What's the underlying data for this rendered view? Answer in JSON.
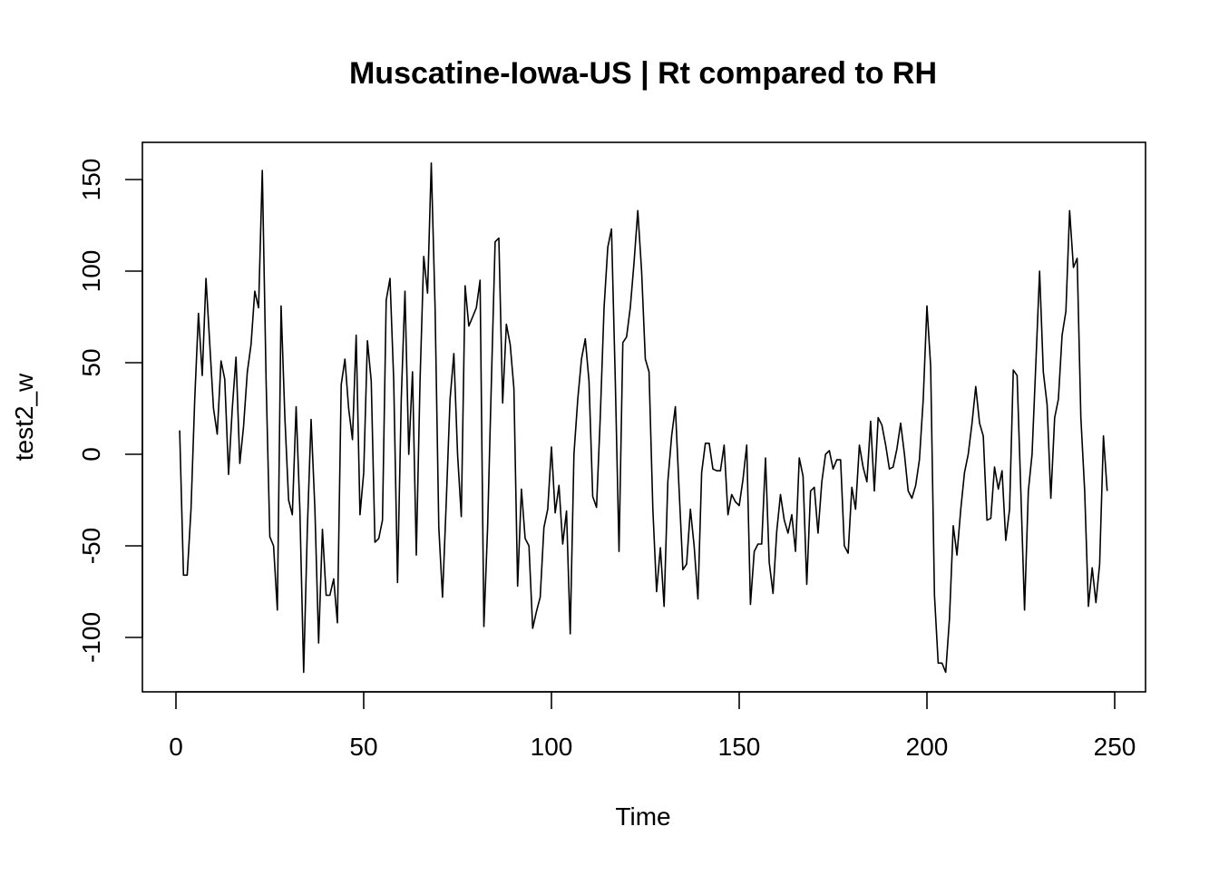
{
  "chart_data": {
    "type": "line",
    "title": "Muscatine-Iowa-US | Rt compared to RH",
    "xlabel": "Time",
    "ylabel": "test2_w",
    "xlim": [
      0,
      250
    ],
    "ylim": [
      -125,
      160
    ],
    "x_ticks": [
      0,
      50,
      100,
      150,
      200,
      250
    ],
    "y_ticks": [
      -100,
      -50,
      0,
      50,
      100,
      150
    ],
    "grid": false,
    "legend": "none",
    "line_color": "#000000",
    "series": [
      {
        "x": [
          1,
          2,
          3,
          4,
          5,
          6,
          7,
          8,
          9,
          10,
          11,
          12,
          13,
          14,
          15,
          16,
          17,
          18,
          19,
          20,
          21,
          22,
          23,
          24,
          25,
          26,
          27,
          28,
          29,
          30,
          31,
          32,
          33,
          34,
          35,
          36,
          37,
          38,
          39,
          40,
          41,
          42,
          43,
          44,
          45,
          46,
          47,
          48,
          49,
          50,
          51,
          52,
          53,
          54,
          55,
          56,
          57,
          58,
          59,
          60,
          61,
          62,
          63,
          64,
          65,
          66,
          67,
          68,
          69,
          70,
          71,
          72,
          73,
          74,
          75,
          76,
          77,
          78,
          79,
          80,
          81,
          82,
          83,
          84,
          85,
          86,
          87,
          88,
          89,
          90,
          91,
          92,
          93,
          94,
          95,
          96,
          97,
          98,
          99,
          100,
          101,
          102,
          103,
          104,
          105,
          106,
          107,
          108,
          109,
          110,
          111,
          112,
          113,
          114,
          115,
          116,
          117,
          118,
          119,
          120,
          121,
          122,
          123,
          124,
          125,
          126,
          127,
          128,
          129,
          130,
          131,
          132,
          133,
          134,
          135,
          136,
          137,
          138,
          139,
          140,
          141,
          142,
          143,
          144,
          145,
          146,
          147,
          148,
          149,
          150,
          151,
          152,
          153,
          154,
          155,
          156,
          157,
          158,
          159,
          160,
          161,
          162,
          163,
          164,
          165,
          166,
          167,
          168,
          169,
          170,
          171,
          172,
          173,
          174,
          175,
          176,
          177,
          178,
          179,
          180,
          181,
          182,
          183,
          184,
          185,
          186,
          187,
          188,
          189,
          190,
          191,
          192,
          193,
          194,
          195,
          196,
          197,
          198,
          199,
          200,
          201,
          202,
          203,
          204,
          205,
          206,
          207,
          208,
          209,
          210,
          211,
          212,
          213,
          214,
          215,
          216,
          217,
          218,
          219,
          220,
          221,
          222,
          223,
          224,
          225,
          226,
          227,
          228,
          229,
          230,
          231,
          232,
          233,
          234,
          235,
          236,
          237,
          238,
          239,
          240,
          241,
          242,
          243,
          244,
          245,
          246,
          247,
          248
        ],
        "y": [
          13,
          -66,
          -66,
          -30,
          30,
          77,
          43,
          96,
          60,
          25,
          11,
          51,
          41,
          -11,
          25,
          53,
          -5,
          15,
          45,
          60,
          89,
          80,
          155,
          40,
          -45,
          -50,
          -85,
          81,
          20,
          -25,
          -33,
          26,
          -30,
          -119,
          -40,
          19,
          -30,
          -103,
          -41,
          -77,
          -77,
          -68,
          -92,
          38,
          52,
          25,
          8,
          65,
          -33,
          -10,
          62,
          40,
          -48,
          -46,
          -36,
          84,
          96,
          40,
          -70,
          30,
          89,
          0,
          45,
          -55,
          40,
          108,
          88,
          159,
          80,
          -40,
          -78,
          -25,
          30,
          55,
          0,
          -34,
          92,
          70,
          75,
          80,
          95,
          -94,
          -40,
          40,
          116,
          118,
          28,
          71,
          60,
          36,
          -72,
          -19,
          -46,
          -50,
          -95,
          -86,
          -78,
          -40,
          -30,
          4,
          -32,
          -17,
          -49,
          -31,
          -98,
          0,
          30,
          52,
          63,
          40,
          -23,
          -29,
          20,
          80,
          113,
          123,
          40,
          -53,
          61,
          64,
          80,
          105,
          133,
          100,
          52,
          45,
          -30,
          -75,
          -51,
          -83,
          -15,
          10,
          26,
          -20,
          -63,
          -60,
          -30,
          -50,
          -79,
          -10,
          6,
          6,
          -8,
          -9,
          -9,
          5,
          -33,
          -22,
          -26,
          -28,
          -14,
          5,
          -82,
          -53,
          -49,
          -49,
          -2,
          -59,
          -76,
          -42,
          -22,
          -36,
          -43,
          -33,
          -53,
          -2,
          -12,
          -71,
          -20,
          -18,
          -43,
          -15,
          0,
          2,
          -8,
          -3,
          -3,
          -50,
          -54,
          -18,
          -30,
          5,
          -7,
          -15,
          18,
          -20,
          20,
          16,
          5,
          -8,
          -7,
          3,
          17,
          0,
          -20,
          -24,
          -17,
          -3,
          30,
          81,
          48,
          -77,
          -114,
          -114,
          -119,
          -90,
          -39,
          -55,
          -30,
          -10,
          0,
          17,
          37,
          17,
          10,
          -36,
          -35,
          -7,
          -19,
          -9,
          -47,
          -30,
          46,
          43,
          -20,
          -85,
          -20,
          0,
          50,
          100,
          45,
          27,
          -24,
          20,
          30,
          65,
          78,
          133,
          102,
          107,
          20,
          -20,
          -83,
          -62,
          -81,
          -60,
          10,
          -20
        ]
      }
    ]
  }
}
